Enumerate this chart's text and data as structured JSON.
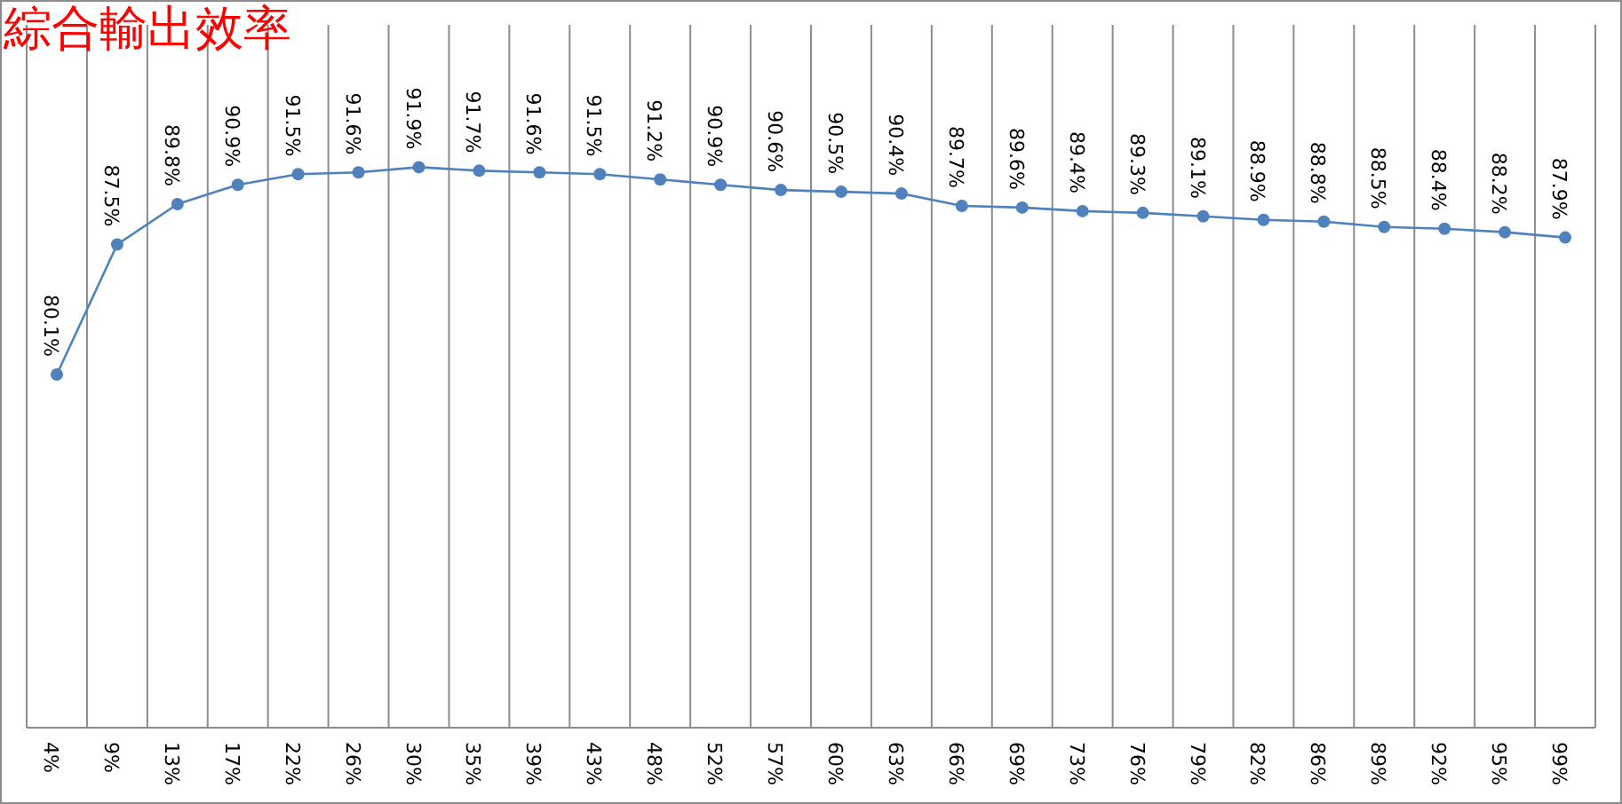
{
  "chart_data": {
    "type": "line",
    "title": "綜合輸出效率",
    "categories": [
      "4%",
      "9%",
      "13%",
      "17%",
      "22%",
      "26%",
      "30%",
      "35%",
      "39%",
      "43%",
      "48%",
      "52%",
      "57%",
      "60%",
      "63%",
      "66%",
      "69%",
      "73%",
      "76%",
      "79%",
      "82%",
      "86%",
      "89%",
      "92%",
      "95%",
      "99%"
    ],
    "series": [
      {
        "color": "#4f81bd",
        "values": [
          80.1,
          87.5,
          89.8,
          90.9,
          91.5,
          91.6,
          91.9,
          91.7,
          91.6,
          91.5,
          91.2,
          90.9,
          90.6,
          90.5,
          90.4,
          89.7,
          89.6,
          89.4,
          89.3,
          89.1,
          88.9,
          88.8,
          88.5,
          88.4,
          88.2,
          87.9
        ],
        "value_labels": [
          "80.1%",
          "87.5%",
          "89.8%",
          "90.9%",
          "91.5%",
          "91.6%",
          "91.9%",
          "91.7%",
          "91.6%",
          "91.5%",
          "91.2%",
          "90.9%",
          "90.6%",
          "90.5%",
          "90.4%",
          "89.7%",
          "89.6%",
          "89.4%",
          "89.3%",
          "89.1%",
          "88.9%",
          "88.8%",
          "88.5%",
          "88.4%",
          "88.2%",
          "87.9%"
        ]
      }
    ],
    "ylim": [
      60,
      100
    ],
    "grid": "x",
    "marker": "circle",
    "line_style": "solid"
  }
}
